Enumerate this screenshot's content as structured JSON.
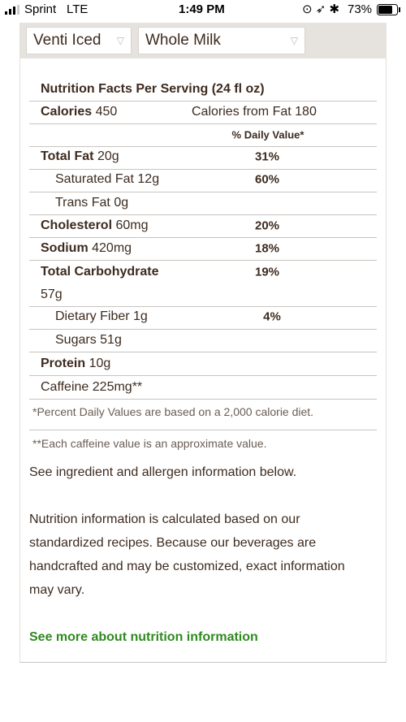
{
  "status_bar": {
    "carrier": "Sprint",
    "network": "LTE",
    "time": "1:49 PM",
    "battery": "73%"
  },
  "selectors": [
    "Venti Iced",
    "Whole Milk"
  ],
  "nutrition": {
    "title": "Nutrition Facts Per Serving (24 fl oz)",
    "calories_label": "Calories",
    "calories_value": "450",
    "fat_calories": "Calories from Fat 180",
    "daily_value_header": "% Daily Value*",
    "rows": [
      {
        "label": "Total Fat",
        "amount": "20g",
        "dv": "31%"
      },
      {
        "label": "Saturated Fat",
        "amount": "12g",
        "dv": "60%"
      },
      {
        "label": "Trans Fat",
        "amount": "0g"
      },
      {
        "label": "Cholesterol",
        "amount": "60mg",
        "dv": "20%"
      },
      {
        "label": "Sodium",
        "amount": "420mg",
        "dv": "18%"
      },
      {
        "label": "Total Carbohydrate",
        "amount": "57g",
        "dv": "19%"
      },
      {
        "label": "Dietary Fiber",
        "amount": "1g",
        "dv": "4%"
      },
      {
        "label": "Sugars",
        "amount": "51g"
      },
      {
        "label": "Protein",
        "amount": "10g"
      },
      {
        "label": "Caffeine",
        "amount": "225mg**"
      }
    ],
    "footnotes": [
      "*Percent Daily Values are based on a 2,000 calorie diet.",
      "**Each caffeine value is an approximate value."
    ]
  },
  "allergen_note": "See ingredient and allergen information below.",
  "disclaimer": "Nutrition information is calculated based on our standardized recipes. Because our beverages are handcrafted and may be customized, exact information may vary.",
  "link": "See more about nutrition information"
}
